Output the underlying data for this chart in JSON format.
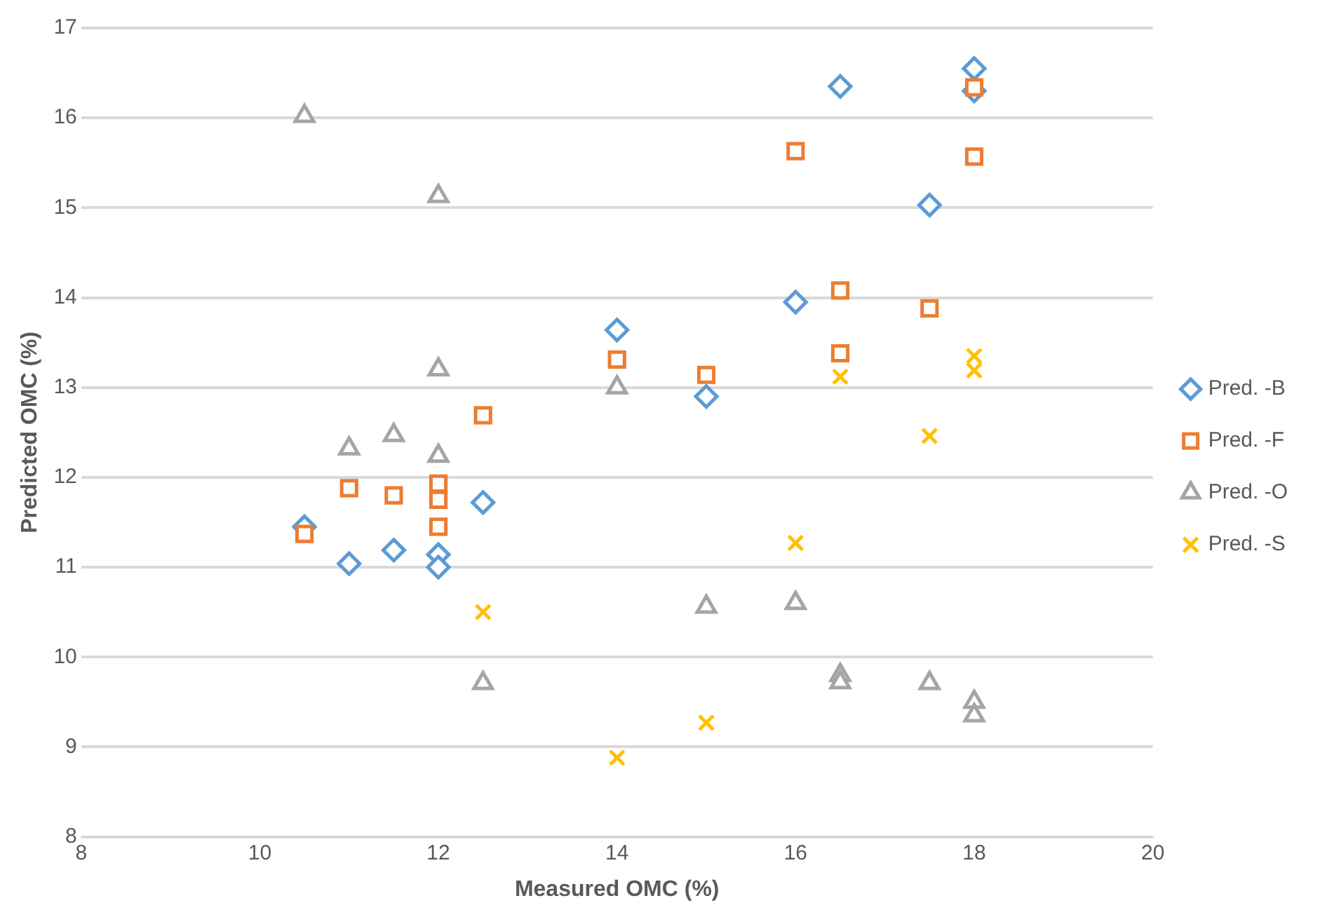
{
  "chart_data": {
    "type": "scatter",
    "xlabel": "Measured OMC (%)",
    "ylabel": "Predicted OMC (%)",
    "xlim": [
      8,
      20
    ],
    "xticks": [
      8,
      10,
      12,
      14,
      16,
      18,
      20
    ],
    "ylim": [
      8,
      17
    ],
    "yticks": [
      8,
      9,
      10,
      11,
      12,
      13,
      14,
      15,
      16,
      17
    ],
    "grid": "y",
    "legend": "right",
    "series": [
      {
        "name": "Pred. -B",
        "color": "#5b9bd5",
        "marker": "diamond",
        "x": [
          10.5,
          11,
          11.5,
          12,
          12,
          12.5,
          14,
          15,
          16,
          16.5,
          17.5,
          18,
          18
        ],
        "values": [
          11.45,
          11.04,
          11.19,
          11.14,
          11.0,
          11.72,
          13.64,
          12.9,
          13.95,
          16.35,
          15.03,
          16.55,
          16.3
        ]
      },
      {
        "name": "Pred. -F",
        "color": "#ed7d31",
        "marker": "square",
        "x": [
          10.5,
          11,
          11.5,
          12,
          12,
          12,
          12.5,
          14,
          15,
          16,
          16.5,
          16.5,
          17.5,
          18,
          18
        ],
        "values": [
          11.37,
          11.88,
          11.8,
          11.93,
          11.75,
          11.45,
          12.69,
          13.31,
          13.14,
          15.63,
          14.08,
          13.38,
          13.88,
          16.34,
          15.57
        ]
      },
      {
        "name": "Pred. -O",
        "color": "#a5a5a5",
        "marker": "triangle",
        "x": [
          10.5,
          11,
          11.5,
          12,
          12,
          12,
          12.5,
          14,
          15,
          16,
          16.5,
          16.5,
          17.5,
          18,
          18
        ],
        "values": [
          16.02,
          12.32,
          12.47,
          15.13,
          13.2,
          12.24,
          9.71,
          13.0,
          10.56,
          10.6,
          9.8,
          9.72,
          9.71,
          9.5,
          9.35
        ]
      },
      {
        "name": "Pred. -S",
        "color": "#ffc000",
        "marker": "cross",
        "x": [
          12.5,
          14,
          15,
          16,
          16.5,
          17.5,
          18,
          18
        ],
        "values": [
          10.5,
          8.88,
          9.27,
          11.27,
          13.12,
          12.46,
          13.35,
          13.19
        ]
      }
    ]
  }
}
